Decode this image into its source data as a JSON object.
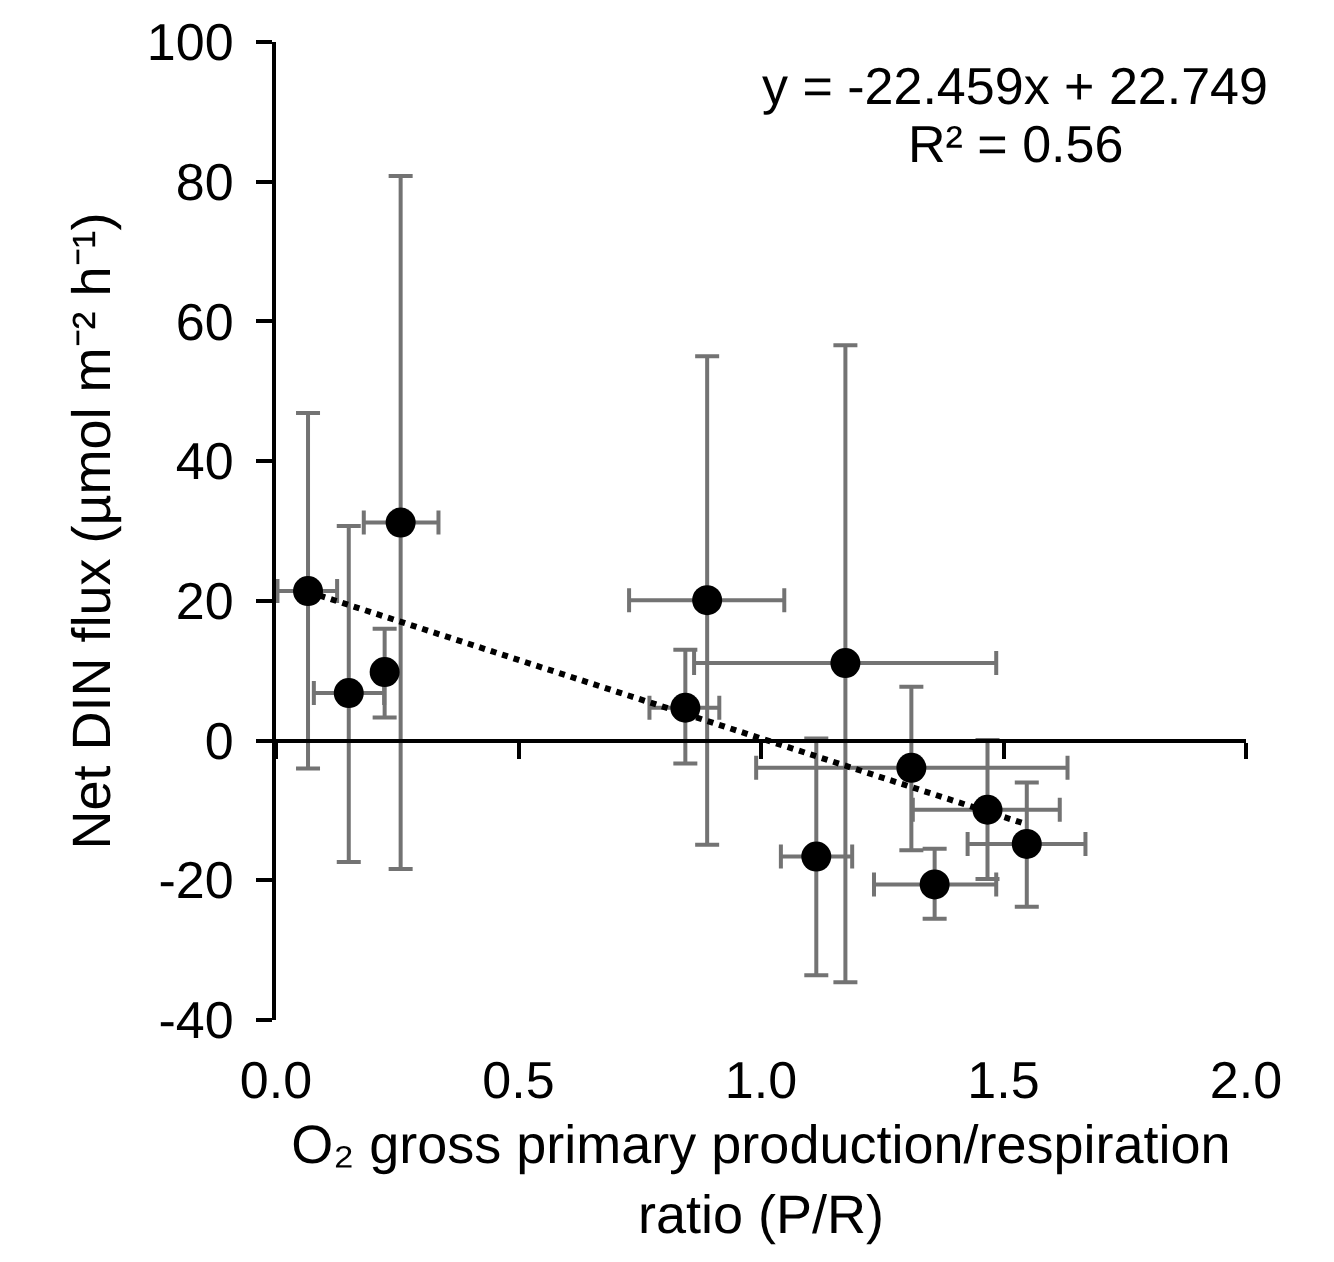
{
  "chart_data": {
    "type": "scatter",
    "xlabel": "O₂ gross primary production/respiration\nratio (P/R)",
    "ylabel": "Net DIN flux (µmol m⁻² h⁻¹)",
    "xlim": [
      0,
      2
    ],
    "xticks": [
      {
        "value": 0,
        "label": "0.0"
      },
      {
        "value": 0.5,
        "label": "0.5"
      },
      {
        "value": 1,
        "label": "1.0"
      },
      {
        "value": 1.5,
        "label": "1.5"
      },
      {
        "value": 2,
        "label": "2.0"
      }
    ],
    "ylim": [
      -40,
      100
    ],
    "yticks": [
      -40,
      -20,
      0,
      20,
      40,
      60,
      80,
      100
    ],
    "annotations": [
      "y = -22.459x + 22.749",
      "R² = 0.56"
    ],
    "series": [
      {
        "color": "#000000",
        "marker": "circle",
        "x": [
          0.066,
          0.15,
          0.224,
          0.257,
          0.844,
          0.889,
          1.174,
          1.114,
          1.31,
          1.467,
          1.358,
          1.548
        ],
        "values": [
          21.4,
          6.8,
          9.8,
          31.2,
          4.7,
          20.1,
          11.1,
          -16.6,
          -3.9,
          -9.9,
          -20.6,
          -14.8
        ],
        "errors": [
          [
            -4.0,
            46.9
          ],
          [
            -17.4,
            30.7
          ],
          [
            3.3,
            16.0
          ],
          [
            -18.4,
            80.8
          ],
          [
            -3.3,
            13.0
          ],
          [
            -14.9,
            55.0
          ],
          [
            -34.6,
            56.6
          ],
          [
            -33.6,
            0.3
          ],
          [
            -15.7,
            7.7
          ],
          [
            -19.8,
            0.1
          ],
          [
            -25.5,
            -15.5
          ],
          [
            -23.8,
            -6.0
          ]
        ],
        "xerrors": [
          [
            0.003,
            0.126
          ],
          [
            0.078,
            0.223
          ],
          null,
          [
            0.181,
            0.335
          ],
          [
            0.77,
            0.914
          ],
          [
            0.728,
            1.048
          ],
          [
            0.862,
            1.485
          ],
          [
            1.041,
            1.188
          ],
          [
            0.99,
            1.632
          ],
          [
            1.313,
            1.616
          ],
          [
            1.233,
            1.485
          ],
          [
            1.426,
            1.669
          ]
        ]
      },
      {
        "type": "line",
        "color": "#000000",
        "line_style": "dotted",
        "marker": "none",
        "x": [
          0.066,
          1.548
        ],
        "values": [
          21.3,
          -12.0
        ]
      }
    ]
  }
}
